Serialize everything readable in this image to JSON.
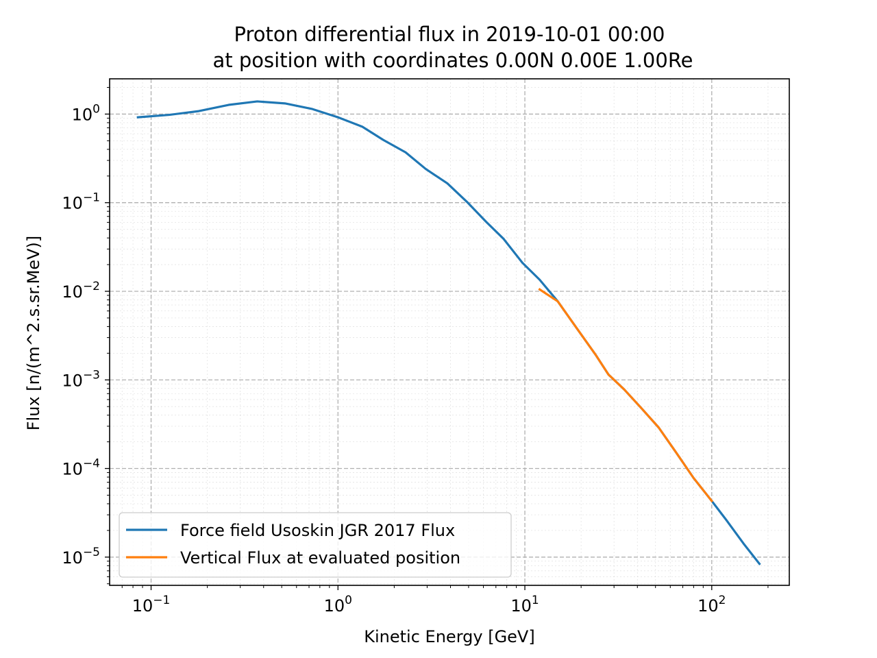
{
  "chart_data": {
    "type": "line",
    "title": "Proton differential flux in 2019-10-01 00:00",
    "subtitle": "at position with coordinates 0.00N 0.00E 1.00Re",
    "xlabel": "Kinetic Energy [GeV]",
    "ylabel": "Flux [n/(m^2.s.sr.MeV)]",
    "xscale": "log",
    "yscale": "log",
    "xlim": [
      0.06,
      260
    ],
    "ylim": [
      4.8e-06,
      2.5
    ],
    "grid": true,
    "legend_position": "lower-left",
    "x_ticks": [
      {
        "base": "10",
        "exp": "−1",
        "value": 0.1
      },
      {
        "base": "10",
        "exp": "0",
        "value": 1
      },
      {
        "base": "10",
        "exp": "1",
        "value": 10
      },
      {
        "base": "10",
        "exp": "2",
        "value": 100
      }
    ],
    "y_ticks": [
      {
        "base": "10",
        "exp": "0",
        "value": 1
      },
      {
        "base": "10",
        "exp": "−1",
        "value": 0.1
      },
      {
        "base": "10",
        "exp": "−2",
        "value": 0.01
      },
      {
        "base": "10",
        "exp": "−3",
        "value": 0.001
      },
      {
        "base": "10",
        "exp": "−4",
        "value": 0.0001
      },
      {
        "base": "10",
        "exp": "−5",
        "value": 1e-05
      }
    ],
    "series": [
      {
        "name": "Force field Usoskin JGR 2017 Flux",
        "color": "#1f77b4",
        "x": [
          0.085,
          0.125,
          0.18,
          0.26,
          0.37,
          0.52,
          0.73,
          1.0,
          1.35,
          1.75,
          2.3,
          2.95,
          3.85,
          4.95,
          6.2,
          7.7,
          9.7,
          12.0,
          15.0,
          19.0,
          24.0,
          28.0,
          34.0,
          42.0,
          52.0,
          64.0,
          80.0,
          100.0,
          120.0,
          148.0,
          180.0
        ],
        "y": [
          0.92,
          0.98,
          1.08,
          1.27,
          1.39,
          1.32,
          1.14,
          0.92,
          0.72,
          0.51,
          0.37,
          0.24,
          0.165,
          0.1,
          0.061,
          0.039,
          0.021,
          0.0135,
          0.0077,
          0.0038,
          0.0019,
          0.00115,
          0.00078,
          0.00048,
          0.00029,
          0.000155,
          7.8e-05,
          4.3e-05,
          2.6e-05,
          1.42e-05,
          8.4e-06
        ]
      },
      {
        "name": "Vertical Flux at evaluated position",
        "color": "#ff7f0e",
        "x": [
          12.0,
          15.0,
          19.0,
          24.0,
          28.0,
          34.0,
          42.0,
          52.0,
          64.0,
          80.0,
          100.0
        ],
        "y": [
          0.0105,
          0.0077,
          0.0038,
          0.0019,
          0.00115,
          0.00078,
          0.00048,
          0.00029,
          0.000155,
          7.8e-05,
          4.3e-05
        ]
      }
    ]
  }
}
